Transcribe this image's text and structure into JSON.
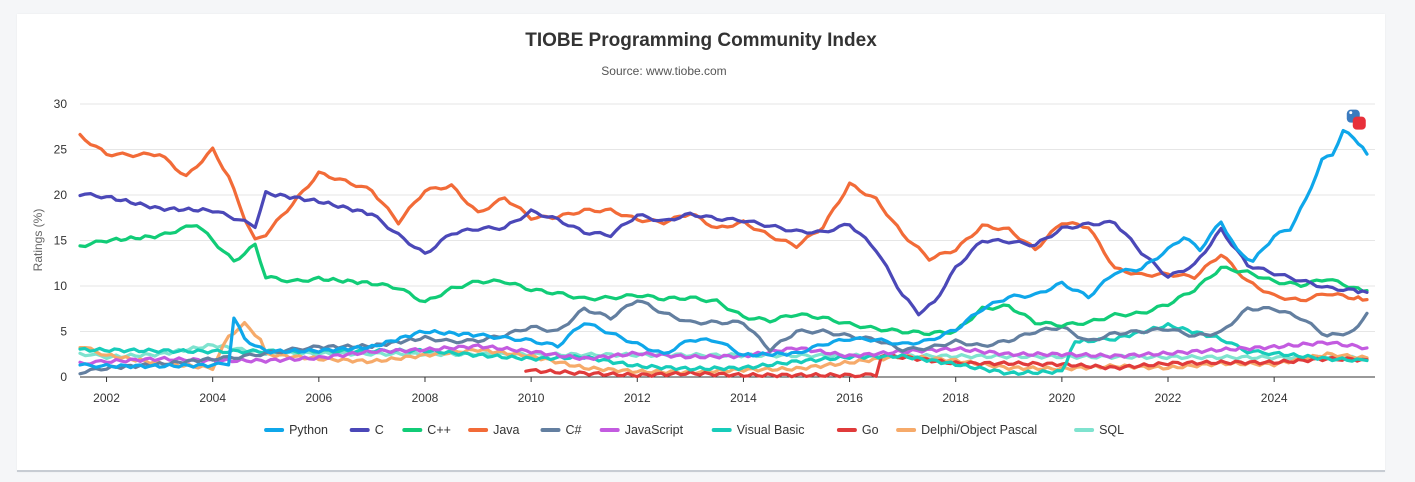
{
  "chart_data": {
    "type": "line",
    "title": "TIOBE Programming Community Index",
    "subtitle": "Source: www.tiobe.com",
    "ylabel": "Ratings (%)",
    "xlabel": "",
    "xlim": [
      2001.5,
      2025.9
    ],
    "ylim": [
      0,
      30
    ],
    "yticks": [
      0,
      5,
      10,
      15,
      20,
      25,
      30
    ],
    "xticks": [
      2002,
      2004,
      2006,
      2008,
      2010,
      2012,
      2014,
      2016,
      2018,
      2020,
      2022,
      2024
    ],
    "xtick_labels": [
      "2002",
      "2004",
      "2006",
      "2008",
      "2010",
      "2012",
      "2014",
      "2016",
      "2018",
      "2020",
      "2022",
      "2024"
    ],
    "grid": true,
    "legend_position": "bottom",
    "series": [
      {
        "name": "Python",
        "color": "#0fa7ea",
        "x": [
          2001.5,
          2002,
          2003,
          2004,
          2004.3,
          2004.4,
          2004.6,
          2005,
          2006,
          2007,
          2007.9,
          2008,
          2009,
          2009.5,
          2010,
          2010.5,
          2011,
          2011.5,
          2012,
          2012.5,
          2013,
          2013.5,
          2014,
          2015,
          2015.5,
          2016,
          2016.5,
          2017,
          2017.5,
          2018,
          2018.5,
          2019,
          2019.5,
          2020,
          2020.5,
          2021,
          2021.5,
          2022,
          2022.3,
          2022.6,
          2023,
          2023.3,
          2023.6,
          2024,
          2024.3,
          2024.6,
          2024.9,
          2025.1,
          2025.3,
          2025.5,
          2025.75
        ],
        "values": [
          1.3,
          1.2,
          1.2,
          1.3,
          1.5,
          6.5,
          4.2,
          2.8,
          2.9,
          3.3,
          4.9,
          5.0,
          4.6,
          4.3,
          4.0,
          3.4,
          6.0,
          4.8,
          3.6,
          2.5,
          4.1,
          4.0,
          2.4,
          2.6,
          3.6,
          4.2,
          4.1,
          3.6,
          4.0,
          5.2,
          7.5,
          8.8,
          9.0,
          10.3,
          8.8,
          11.5,
          11.9,
          14.0,
          15.4,
          14.0,
          17.1,
          13.9,
          12.7,
          15.5,
          16.3,
          19.5,
          23.8,
          24.5,
          27.0,
          26.3,
          24.5
        ]
      },
      {
        "name": "C",
        "color": "#4b48b8",
        "x": [
          2001.5,
          2002,
          2003,
          2004,
          2004.3,
          2004.8,
          2005,
          2006,
          2007,
          2007.5,
          2008,
          2008.5,
          2009,
          2009.5,
          2010,
          2010.5,
          2011,
          2011.5,
          2012,
          2012.5,
          2013,
          2013.5,
          2014,
          2014.5,
          2015,
          2015.5,
          2016,
          2016.5,
          2017,
          2017.3,
          2017.6,
          2018,
          2018.5,
          2019,
          2019.5,
          2020,
          2020.5,
          2021,
          2021.5,
          2022,
          2022.5,
          2023,
          2023.5,
          2024,
          2024.5,
          2025,
          2025.5,
          2025.75
        ],
        "values": [
          20.1,
          19.8,
          18.5,
          18.3,
          17.7,
          16.6,
          20.2,
          19.3,
          17.9,
          15.6,
          13.5,
          15.8,
          16.3,
          16.4,
          18.2,
          17.3,
          15.9,
          15.6,
          17.8,
          17.1,
          17.9,
          17.4,
          17.2,
          16.6,
          16.0,
          15.9,
          16.8,
          14.0,
          9.0,
          7.0,
          8.2,
          12.0,
          15.0,
          14.9,
          14.5,
          16.3,
          16.8,
          17.0,
          13.7,
          11.0,
          12.3,
          16.2,
          12.3,
          11.4,
          10.6,
          9.8,
          9.5,
          9.3
        ]
      },
      {
        "name": "C++",
        "color": "#11cc77",
        "x": [
          2001.5,
          2002,
          2003,
          2003.7,
          2004,
          2004.4,
          2004.8,
          2005,
          2005.5,
          2006,
          2007,
          2007.5,
          2008,
          2008.5,
          2009,
          2009.5,
          2010,
          2010.5,
          2011,
          2011.5,
          2012,
          2012.5,
          2013,
          2013.5,
          2014,
          2014.5,
          2015,
          2015.5,
          2016,
          2016.5,
          2017,
          2017.5,
          2018,
          2018.5,
          2019,
          2019.5,
          2020,
          2020.5,
          2021,
          2021.5,
          2022,
          2022.5,
          2023,
          2023.5,
          2024,
          2024.5,
          2025,
          2025.5,
          2025.75
        ],
        "values": [
          14.4,
          15.0,
          15.5,
          16.8,
          15.0,
          12.7,
          14.5,
          11.0,
          10.5,
          10.8,
          10.3,
          9.8,
          8.2,
          9.7,
          10.5,
          10.5,
          9.6,
          9.2,
          8.6,
          8.7,
          9.0,
          8.6,
          8.7,
          8.3,
          6.6,
          6.2,
          6.9,
          6.5,
          5.8,
          5.3,
          5.0,
          4.8,
          5.0,
          7.5,
          7.8,
          6.0,
          5.7,
          6.0,
          6.8,
          7.0,
          8.0,
          9.6,
          12.0,
          11.5,
          10.5,
          10.1,
          10.8,
          9.8,
          9.5
        ]
      },
      {
        "name": "Java",
        "color": "#f26b38",
        "x": [
          2001.5,
          2002,
          2002.5,
          2003,
          2003.5,
          2004,
          2004.3,
          2004.6,
          2004.8,
          2005,
          2005.5,
          2006,
          2006.5,
          2007,
          2007.5,
          2008,
          2008.5,
          2009,
          2009.5,
          2010,
          2010.5,
          2011,
          2011.5,
          2012,
          2012.5,
          2013,
          2013.5,
          2014,
          2014.5,
          2015,
          2015.5,
          2016,
          2016.5,
          2017,
          2017.5,
          2018,
          2018.5,
          2019,
          2019.5,
          2020,
          2020.5,
          2021,
          2021.5,
          2022,
          2022.5,
          2023,
          2023.5,
          2024,
          2024.5,
          2025,
          2025.5,
          2025.75
        ],
        "values": [
          26.5,
          24.5,
          24.4,
          24.5,
          22.0,
          25.0,
          22.0,
          17.5,
          15.0,
          15.7,
          19.0,
          22.4,
          21.5,
          20.5,
          17.0,
          20.5,
          21.0,
          18.0,
          19.7,
          17.5,
          17.6,
          18.3,
          18.3,
          17.3,
          17.0,
          18.0,
          16.3,
          17.0,
          15.5,
          14.4,
          16.5,
          21.2,
          19.5,
          15.7,
          13.0,
          14.0,
          16.6,
          16.2,
          14.0,
          17.0,
          16.5,
          11.9,
          11.2,
          11.3,
          11.0,
          13.5,
          10.5,
          8.9,
          8.4,
          9.2,
          8.7,
          8.5
        ]
      },
      {
        "name": "C#",
        "color": "#637fa0",
        "x": [
          2001.5,
          2002,
          2003,
          2004,
          2004.5,
          2005,
          2005.5,
          2006,
          2007,
          2008,
          2008.5,
          2009,
          2009.5,
          2010,
          2010.5,
          2011,
          2011.5,
          2012,
          2012.5,
          2013,
          2013.5,
          2014,
          2014.5,
          2015,
          2015.5,
          2016,
          2016.5,
          2017,
          2017.5,
          2018,
          2018.5,
          2019,
          2019.5,
          2020,
          2020.5,
          2021,
          2021.5,
          2022,
          2022.5,
          2023,
          2023.5,
          2024,
          2024.5,
          2025,
          2025.5,
          2025.75
        ],
        "values": [
          0.5,
          1.0,
          1.4,
          2.0,
          2.2,
          2.6,
          3.0,
          3.3,
          3.4,
          4.3,
          3.9,
          4.0,
          4.6,
          5.5,
          5.0,
          7.5,
          6.5,
          8.5,
          7.0,
          6.0,
          6.0,
          6.0,
          3.0,
          5.0,
          5.0,
          4.5,
          4.1,
          3.0,
          3.2,
          3.9,
          3.4,
          4.0,
          5.0,
          5.5,
          3.9,
          4.8,
          5.0,
          5.3,
          4.5,
          4.9,
          7.5,
          7.5,
          6.5,
          4.5,
          5.0,
          7.0
        ]
      },
      {
        "name": "JavaScript",
        "color": "#c35be0",
        "x": [
          2001.5,
          2002,
          2003,
          2004,
          2005,
          2006,
          2007,
          2008,
          2009,
          2010,
          2011,
          2012,
          2013,
          2014,
          2015,
          2016,
          2017,
          2018,
          2019,
          2020,
          2021,
          2022,
          2023,
          2024,
          2025,
          2025.75
        ],
        "values": [
          1.5,
          1.7,
          2.0,
          1.8,
          1.8,
          2.1,
          2.8,
          3.0,
          3.4,
          2.8,
          2.0,
          2.6,
          2.2,
          2.3,
          3.2,
          2.3,
          2.8,
          3.1,
          2.5,
          2.5,
          2.3,
          2.6,
          3.0,
          3.3,
          3.8,
          3.2
        ]
      },
      {
        "name": "Visual Basic",
        "color": "#17ccba",
        "x": [
          2001.5,
          2004,
          2008,
          2009,
          2010,
          2011,
          2012,
          2013,
          2014,
          2015,
          2016,
          2017,
          2018,
          2019,
          2020,
          2020.25,
          2020.5,
          2021,
          2022,
          2023,
          2023.5,
          2024,
          2025,
          2025.75
        ],
        "values": [
          3.0,
          2.8,
          2.9,
          2.4,
          2.0,
          2.2,
          1.2,
          0.9,
          1.0,
          1.7,
          2.2,
          2.3,
          1.4,
          0.4,
          0.6,
          3.9,
          4.0,
          4.2,
          5.7,
          4.2,
          2.8,
          2.6,
          2.0,
          1.8
        ]
      },
      {
        "name": "Go",
        "color": "#e03b3b",
        "x": [
          2009.9,
          2010,
          2011,
          2012,
          2013,
          2014,
          2015,
          2016,
          2016.5,
          2016.6,
          2017,
          2018,
          2019,
          2020,
          2021,
          2022,
          2023,
          2024,
          2025,
          2025.75
        ],
        "values": [
          0.8,
          0.7,
          0.4,
          0.2,
          0.4,
          0.2,
          0.2,
          0.2,
          0.2,
          2.4,
          2.2,
          1.5,
          1.5,
          1.4,
          1.0,
          1.5,
          1.6,
          1.6,
          2.0,
          1.9
        ]
      },
      {
        "name": "Delphi/Object Pascal",
        "color": "#f6aa6a",
        "x": [
          2001.5,
          2002,
          2003,
          2004,
          2004.3,
          2004.6,
          2004.9,
          2005,
          2006,
          2007,
          2008,
          2009,
          2010,
          2011,
          2012,
          2013,
          2014,
          2015,
          2016,
          2017,
          2018,
          2019,
          2020,
          2021,
          2022,
          2023,
          2024,
          2025,
          2025.75
        ],
        "values": [
          3.4,
          2.4,
          1.5,
          1.0,
          4.5,
          5.8,
          4.2,
          2.5,
          2.0,
          1.7,
          2.4,
          3.0,
          2.3,
          1.0,
          0.6,
          0.5,
          0.8,
          0.9,
          1.6,
          2.3,
          1.8,
          1.0,
          0.9,
          1.2,
          1.0,
          1.5,
          1.4,
          2.5,
          2.1
        ]
      },
      {
        "name": "SQL",
        "color": "#7fe3cf",
        "x": [
          2001.5,
          2002,
          2003,
          2004,
          2005,
          2025.75
        ],
        "values": [
          2.6,
          2.2,
          2.5,
          3.5,
          2.6,
          2.1
        ]
      }
    ],
    "logo": "python-logo-icon"
  }
}
